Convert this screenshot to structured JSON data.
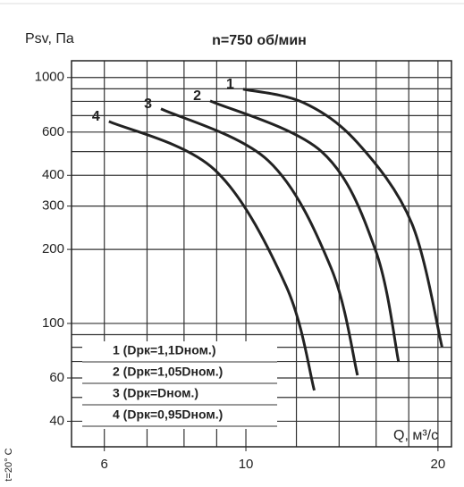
{
  "chart_data": {
    "type": "line",
    "title": "n=750 об/мин",
    "y_label": "Psv, Па",
    "x_label": "Q, м³/с",
    "note": "t=20° C",
    "xlog": true,
    "ylog": true,
    "grid": true,
    "xlim": [
      5.33,
      21
    ],
    "ylim": [
      31.5,
      1170
    ],
    "xticks": [
      6,
      10,
      20
    ],
    "yticks": [
      40,
      60,
      100,
      200,
      300,
      400,
      600,
      1000
    ],
    "xgrid": [
      6,
      7,
      8,
      9,
      10,
      12,
      14,
      16,
      18,
      20
    ],
    "ygrid": [
      40,
      50,
      60,
      70,
      80,
      90,
      100,
      200,
      300,
      400,
      500,
      600,
      700,
      800,
      900,
      1000
    ],
    "legend": "lower left",
    "series": [
      {
        "name": "1 (Dрк=1,1Dном.)",
        "label": "1",
        "color": "#222",
        "x": [
          9.9,
          12.3,
          14.96,
          18.2,
          20.3
        ],
        "values": [
          897,
          791,
          543,
          255,
          80
        ]
      },
      {
        "name": "2 (Dрк=1,05Dном.)",
        "label": "2",
        "color": "#222",
        "x": [
          8.79,
          13.15,
          15.96,
          17.35
        ],
        "values": [
          804,
          499,
          199,
          69.8
        ]
      },
      {
        "name": "3 (Dрк=Dном.)",
        "label": "3",
        "color": "#222",
        "x": [
          7.36,
          10.84,
          13.6,
          14.96
        ],
        "values": [
          746,
          459,
          168,
          61.5
        ]
      },
      {
        "name": "4 (Dрк=0,95Dном.)",
        "label": "4",
        "color": "#222",
        "x": [
          6.1,
          8.93,
          11.56,
          12.8
        ],
        "values": [
          663,
          422,
          142,
          53.4
        ]
      }
    ]
  }
}
